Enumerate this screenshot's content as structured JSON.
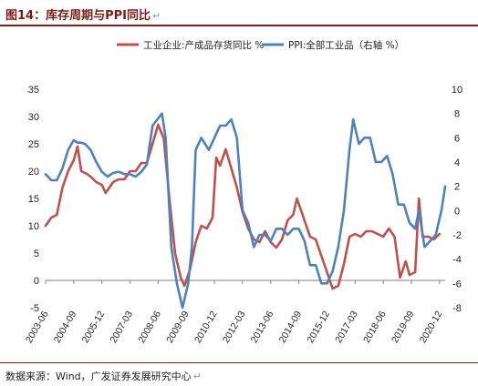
{
  "page": {
    "title": "图14：库存周期与PPI同比",
    "source": "数据来源：Wind，广发证券发展研究中心",
    "return_mark": "↵"
  },
  "chart_data": {
    "type": "line",
    "legend_position": "top",
    "grid": false,
    "x_ticks": [
      "2003-06",
      "2004-09",
      "2005-12",
      "2007-03",
      "2008-06",
      "2009-09",
      "2010-12",
      "2012-03",
      "2013-06",
      "2014-09",
      "2015-12",
      "2017-03",
      "2018-06",
      "2019-09",
      "2020-12"
    ],
    "x_range": [
      "2003-06",
      "2021-03"
    ],
    "y_left": {
      "range": [
        -5,
        35
      ],
      "ticks": [
        -5,
        0,
        5,
        10,
        15,
        20,
        25,
        30,
        35
      ]
    },
    "y_right": {
      "range": [
        -8,
        10
      ],
      "ticks": [
        -8,
        -6,
        -4,
        -2,
        0,
        2,
        4,
        6,
        8,
        10
      ]
    },
    "series": [
      {
        "name": "工业企业:产成品存货同比 %",
        "color": "#c0504d",
        "axis": "left",
        "points": [
          [
            "2003-06",
            10.0
          ],
          [
            "2003-09",
            11.5
          ],
          [
            "2003-12",
            12.0
          ],
          [
            "2004-03",
            17.0
          ],
          [
            "2004-06",
            20.0
          ],
          [
            "2004-09",
            22.0
          ],
          [
            "2004-11",
            24.5
          ],
          [
            "2005-01",
            20.0
          ],
          [
            "2005-04",
            19.5
          ],
          [
            "2005-06",
            19.0
          ],
          [
            "2005-09",
            18.0
          ],
          [
            "2005-12",
            17.5
          ],
          [
            "2006-02",
            16.0
          ],
          [
            "2006-06",
            18.0
          ],
          [
            "2006-09",
            18.5
          ],
          [
            "2006-12",
            18.5
          ],
          [
            "2007-03",
            20.0
          ],
          [
            "2007-06",
            20.0
          ],
          [
            "2007-09",
            21.5
          ],
          [
            "2007-12",
            21.5
          ],
          [
            "2008-03",
            25.0
          ],
          [
            "2008-06",
            28.5
          ],
          [
            "2008-09",
            26.0
          ],
          [
            "2008-12",
            15.0
          ],
          [
            "2009-03",
            5.0
          ],
          [
            "2009-06",
            0.5
          ],
          [
            "2009-08",
            -1.0
          ],
          [
            "2009-11",
            2.0
          ],
          [
            "2010-02",
            7.0
          ],
          [
            "2010-05",
            10.0
          ],
          [
            "2010-08",
            9.5
          ],
          [
            "2010-11",
            11.5
          ],
          [
            "2011-01",
            22.5
          ],
          [
            "2011-03",
            21.0
          ],
          [
            "2011-06",
            24.0
          ],
          [
            "2011-09",
            20.5
          ],
          [
            "2011-12",
            17.0
          ],
          [
            "2012-03",
            12.5
          ],
          [
            "2012-06",
            9.5
          ],
          [
            "2012-09",
            7.5
          ],
          [
            "2012-12",
            7.0
          ],
          [
            "2013-03",
            9.0
          ],
          [
            "2013-06",
            7.0
          ],
          [
            "2013-09",
            6.0
          ],
          [
            "2013-12",
            7.5
          ],
          [
            "2014-03",
            11.0
          ],
          [
            "2014-06",
            12.0
          ],
          [
            "2014-08",
            15.0
          ],
          [
            "2014-11",
            12.0
          ],
          [
            "2015-03",
            8.0
          ],
          [
            "2015-06",
            7.5
          ],
          [
            "2015-09",
            4.5
          ],
          [
            "2015-12",
            1.5
          ],
          [
            "2016-03",
            -1.5
          ],
          [
            "2016-06",
            -1.0
          ],
          [
            "2016-09",
            3.0
          ],
          [
            "2016-12",
            8.0
          ],
          [
            "2017-03",
            8.5
          ],
          [
            "2017-06",
            8.0
          ],
          [
            "2017-09",
            9.0
          ],
          [
            "2017-12",
            9.0
          ],
          [
            "2018-03",
            8.5
          ],
          [
            "2018-06",
            8.0
          ],
          [
            "2018-09",
            9.5
          ],
          [
            "2018-12",
            8.0
          ],
          [
            "2019-03",
            0.5
          ],
          [
            "2019-06",
            3.5
          ],
          [
            "2019-08",
            1.0
          ],
          [
            "2019-11",
            1.5
          ],
          [
            "2020-01",
            15.0
          ],
          [
            "2020-03",
            8.0
          ],
          [
            "2020-06",
            8.0
          ],
          [
            "2020-09",
            7.5
          ],
          [
            "2020-12",
            8.5
          ]
        ]
      },
      {
        "name": "PPI:全部工业品（右轴 %）",
        "color": "#4f81bd",
        "axis": "right",
        "points": [
          [
            "2003-06",
            3.0
          ],
          [
            "2003-09",
            2.5
          ],
          [
            "2003-12",
            2.5
          ],
          [
            "2004-03",
            3.5
          ],
          [
            "2004-06",
            5.0
          ],
          [
            "2004-09",
            5.8
          ],
          [
            "2004-11",
            5.6
          ],
          [
            "2005-01",
            5.6
          ],
          [
            "2005-03",
            5.5
          ],
          [
            "2005-06",
            5.0
          ],
          [
            "2005-09",
            4.0
          ],
          [
            "2005-12",
            3.2
          ],
          [
            "2006-03",
            2.8
          ],
          [
            "2006-06",
            3.1
          ],
          [
            "2006-09",
            3.2
          ],
          [
            "2006-12",
            3.0
          ],
          [
            "2007-03",
            3.0
          ],
          [
            "2007-06",
            2.8
          ],
          [
            "2007-09",
            3.2
          ],
          [
            "2007-12",
            3.8
          ],
          [
            "2008-03",
            7.0
          ],
          [
            "2008-06",
            7.6
          ],
          [
            "2008-08",
            8.0
          ],
          [
            "2008-10",
            6.0
          ],
          [
            "2009-01",
            -3.0
          ],
          [
            "2009-04",
            -6.0
          ],
          [
            "2009-07",
            -8.0
          ],
          [
            "2009-10",
            -6.0
          ],
          [
            "2009-12",
            -3.0
          ],
          [
            "2010-02",
            5.0
          ],
          [
            "2010-05",
            6.0
          ],
          [
            "2010-09",
            5.0
          ],
          [
            "2010-12",
            6.0
          ],
          [
            "2011-03",
            7.0
          ],
          [
            "2011-06",
            7.0
          ],
          [
            "2011-09",
            7.5
          ],
          [
            "2011-12",
            6.0
          ],
          [
            "2012-03",
            0.0
          ],
          [
            "2012-06",
            -1.0
          ],
          [
            "2012-09",
            -3.0
          ],
          [
            "2012-12",
            -2.0
          ],
          [
            "2013-03",
            -2.0
          ],
          [
            "2013-06",
            -2.5
          ],
          [
            "2013-09",
            -1.5
          ],
          [
            "2013-12",
            -1.5
          ],
          [
            "2014-03",
            -2.0
          ],
          [
            "2014-06",
            -1.5
          ],
          [
            "2014-09",
            -1.5
          ],
          [
            "2014-12",
            -2.5
          ],
          [
            "2015-03",
            -4.5
          ],
          [
            "2015-06",
            -4.5
          ],
          [
            "2015-09",
            -6.0
          ],
          [
            "2015-12",
            -6.0
          ],
          [
            "2016-03",
            -5.0
          ],
          [
            "2016-06",
            -3.0
          ],
          [
            "2016-09",
            0.0
          ],
          [
            "2016-12",
            5.0
          ],
          [
            "2017-02",
            7.5
          ],
          [
            "2017-05",
            5.5
          ],
          [
            "2017-08",
            6.0
          ],
          [
            "2017-11",
            6.0
          ],
          [
            "2018-02",
            4.0
          ],
          [
            "2018-05",
            4.0
          ],
          [
            "2018-08",
            4.5
          ],
          [
            "2018-11",
            3.0
          ],
          [
            "2019-02",
            0.5
          ],
          [
            "2019-05",
            0.5
          ],
          [
            "2019-08",
            -1.0
          ],
          [
            "2019-11",
            -1.5
          ],
          [
            "2020-01",
            0.0
          ],
          [
            "2020-04",
            -3.0
          ],
          [
            "2020-07",
            -2.5
          ],
          [
            "2020-10",
            -2.0
          ],
          [
            "2021-01",
            0.0
          ],
          [
            "2021-03",
            2.0
          ]
        ]
      }
    ]
  }
}
